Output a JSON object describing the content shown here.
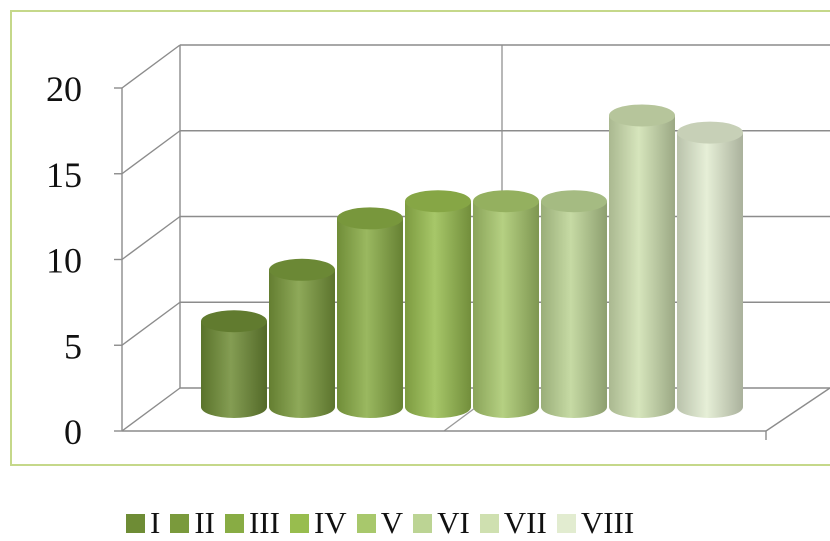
{
  "chart_data": {
    "type": "bar",
    "style": "3d-cylinder",
    "categories": [
      "I",
      "II",
      "III",
      "IV",
      "V",
      "VI",
      "VII",
      "VIII"
    ],
    "values": [
      5,
      8,
      11,
      12,
      12,
      12,
      17,
      16
    ],
    "colors": [
      "#6e8c35",
      "#7a9a3c",
      "#88ac44",
      "#98bd4e",
      "#a8c86c",
      "#bcd494",
      "#cfe0b0",
      "#e2ecd0"
    ],
    "ylim": [
      0,
      20
    ],
    "yticks": [
      0,
      5,
      10,
      15,
      20
    ],
    "grid": true,
    "legend_position": "bottom",
    "frame_color": "#c5d88a"
  }
}
